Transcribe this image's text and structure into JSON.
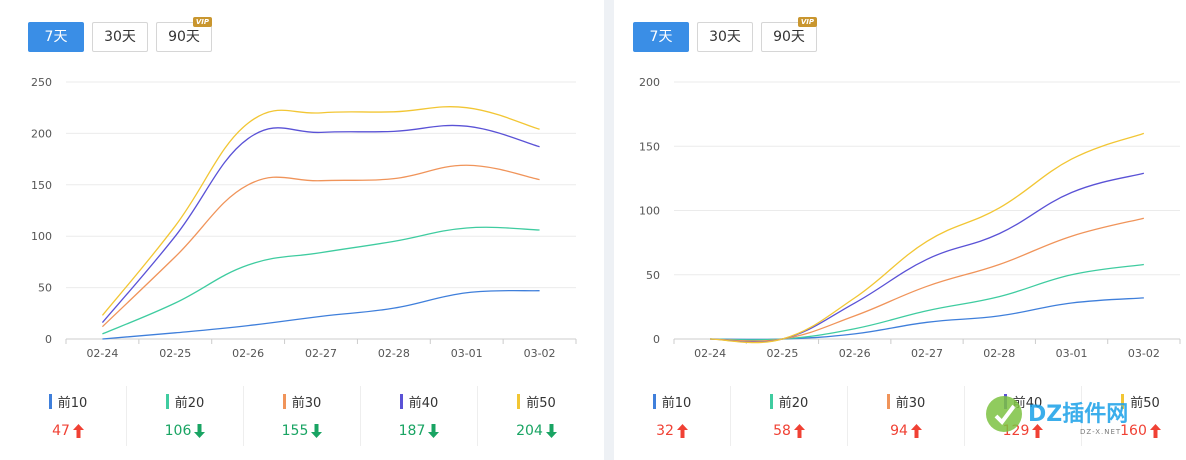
{
  "panels": [
    {
      "tabs": [
        {
          "label": "7天",
          "active": true
        },
        {
          "label": "30天",
          "active": false
        },
        {
          "label": "90天",
          "active": false,
          "badge": "VIP"
        }
      ],
      "legend": [
        {
          "name": "前10",
          "value": "47",
          "trend": "up",
          "color": "#3f7fdb"
        },
        {
          "name": "前20",
          "value": "106",
          "trend": "down",
          "color": "#3fcca0"
        },
        {
          "name": "前30",
          "value": "155",
          "trend": "down",
          "color": "#f0945a"
        },
        {
          "name": "前40",
          "value": "187",
          "trend": "down",
          "color": "#5a52d6"
        },
        {
          "name": "前50",
          "value": "204",
          "trend": "down",
          "color": "#f2c634"
        }
      ]
    },
    {
      "tabs": [
        {
          "label": "7天",
          "active": true
        },
        {
          "label": "30天",
          "active": false
        },
        {
          "label": "90天",
          "active": false,
          "badge": "VIP"
        }
      ],
      "legend": [
        {
          "name": "前10",
          "value": "32",
          "trend": "up",
          "color": "#3f7fdb"
        },
        {
          "name": "前20",
          "value": "58",
          "trend": "up",
          "color": "#3fcca0"
        },
        {
          "name": "前30",
          "value": "94",
          "trend": "up",
          "color": "#f0945a"
        },
        {
          "name": "前40",
          "value": "129",
          "trend": "up",
          "color": "#5a52d6"
        },
        {
          "name": "前50",
          "value": "160",
          "trend": "up",
          "color": "#f2c634"
        }
      ]
    }
  ],
  "chart_data": [
    {
      "type": "line",
      "x": [
        "02-24",
        "02-25",
        "02-26",
        "02-27",
        "02-28",
        "03-01",
        "03-02"
      ],
      "ylim": [
        0,
        250
      ],
      "yticks": [
        0,
        50,
        100,
        150,
        200,
        250
      ],
      "grid": true,
      "series": [
        {
          "name": "前10",
          "color": "#3f7fdb",
          "values": [
            0,
            6,
            13,
            22,
            30,
            45,
            47
          ]
        },
        {
          "name": "前20",
          "color": "#3fcca0",
          "values": [
            5,
            35,
            72,
            84,
            95,
            108,
            106
          ]
        },
        {
          "name": "前30",
          "color": "#f0945a",
          "values": [
            12,
            80,
            150,
            154,
            156,
            169,
            155
          ]
        },
        {
          "name": "前40",
          "color": "#5a52d6",
          "values": [
            16,
            100,
            195,
            201,
            202,
            207,
            187
          ]
        },
        {
          "name": "前50",
          "color": "#f2c634",
          "values": [
            23,
            110,
            210,
            220,
            221,
            225,
            204
          ]
        }
      ]
    },
    {
      "type": "line",
      "x": [
        "02-24",
        "02-25",
        "02-26",
        "02-27",
        "02-28",
        "03-01",
        "03-02"
      ],
      "ylim": [
        0,
        200
      ],
      "yticks": [
        0,
        50,
        100,
        150,
        200
      ],
      "grid": true,
      "series": [
        {
          "name": "前10",
          "color": "#3f7fdb",
          "values": [
            0,
            0,
            4,
            13,
            18,
            28,
            32
          ]
        },
        {
          "name": "前20",
          "color": "#3fcca0",
          "values": [
            0,
            0,
            8,
            22,
            33,
            50,
            58
          ]
        },
        {
          "name": "前30",
          "color": "#f0945a",
          "values": [
            0,
            0,
            18,
            41,
            58,
            80,
            94
          ]
        },
        {
          "name": "前40",
          "color": "#5a52d6",
          "values": [
            0,
            0,
            28,
            62,
            82,
            114,
            129
          ]
        },
        {
          "name": "前50",
          "color": "#f2c634",
          "values": [
            0,
            0,
            32,
            76,
            102,
            140,
            160
          ]
        }
      ]
    }
  ],
  "watermark": {
    "main": "DZ插件网",
    "sub": "DZ-X.NET"
  }
}
